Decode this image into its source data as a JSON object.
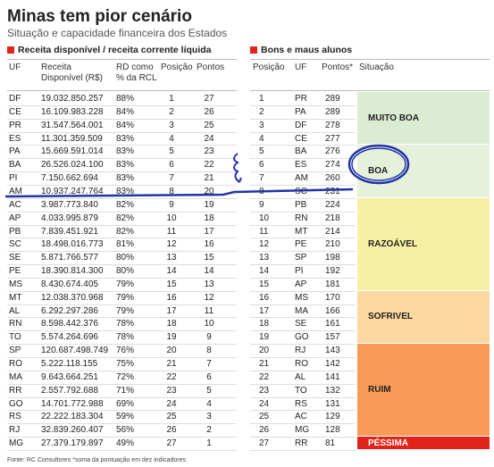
{
  "header": {
    "title": "Minas tem pior cenário",
    "subtitle": "Situação e capacidade financeira dos Estados"
  },
  "left_table": {
    "heading": "Receita disponível / receita corrente líquida",
    "columns": [
      "UF",
      "Receita Disponível (R$)",
      "RD como % da RCL",
      "Posição",
      "Pontos"
    ],
    "rows": [
      [
        "DF",
        "19.032.850.257",
        "88%",
        "1",
        "27"
      ],
      [
        "CE",
        "16.109.983.228",
        "84%",
        "2",
        "26"
      ],
      [
        "PR",
        "31.547.564.001",
        "84%",
        "3",
        "25"
      ],
      [
        "ES",
        "11.301.359.509",
        "83%",
        "4",
        "24"
      ],
      [
        "PA",
        "15.669.591.014",
        "83%",
        "5",
        "23"
      ],
      [
        "BA",
        "26.526.024.100",
        "83%",
        "6",
        "22"
      ],
      [
        "PI",
        "7.150.662.694",
        "83%",
        "7",
        "21"
      ],
      [
        "AM",
        "10.937.247.764",
        "83%",
        "8",
        "20"
      ],
      [
        "AC",
        "3.987.773.840",
        "82%",
        "9",
        "19"
      ],
      [
        "AP",
        "4.033.995.879",
        "82%",
        "10",
        "18"
      ],
      [
        "PB",
        "7.839.451.921",
        "82%",
        "11",
        "17"
      ],
      [
        "SC",
        "18.498.016.773",
        "81%",
        "12",
        "16"
      ],
      [
        "SE",
        "5.871.766.577",
        "80%",
        "13",
        "15"
      ],
      [
        "PE",
        "18.390.814.300",
        "80%",
        "14",
        "14"
      ],
      [
        "MS",
        "8.430.674.405",
        "79%",
        "15",
        "13"
      ],
      [
        "MT",
        "12.038.370.968",
        "79%",
        "16",
        "12"
      ],
      [
        "AL",
        "6.292.297.286",
        "79%",
        "17",
        "11"
      ],
      [
        "RN",
        "8.598.442.376",
        "78%",
        "18",
        "10"
      ],
      [
        "TO",
        "5.574.264.696",
        "78%",
        "19",
        "9"
      ],
      [
        "SP",
        "120.687.498.749",
        "76%",
        "20",
        "8"
      ],
      [
        "RO",
        "5.222.118.155",
        "75%",
        "21",
        "7"
      ],
      [
        "MA",
        "9.643.664.251",
        "72%",
        "22",
        "6"
      ],
      [
        "RR",
        "2.557.792.688",
        "71%",
        "23",
        "5"
      ],
      [
        "GO",
        "14.701.772.988",
        "69%",
        "24",
        "4"
      ],
      [
        "RS",
        "22.222.183.304",
        "59%",
        "25",
        "3"
      ],
      [
        "RJ",
        "32.839.260.407",
        "56%",
        "26",
        "2"
      ],
      [
        "MG",
        "27.379.179.897",
        "49%",
        "27",
        "1"
      ]
    ]
  },
  "right_table": {
    "heading": "Bons e maus alunos",
    "columns": [
      "Posição",
      "UF",
      "Pontos*",
      "Situação"
    ],
    "groups": [
      {
        "label": "MUITO BOA",
        "rows": [
          [
            "1",
            "PR",
            "289"
          ],
          [
            "2",
            "PA",
            "289"
          ],
          [
            "3",
            "DF",
            "278"
          ],
          [
            "4",
            "CE",
            "277"
          ]
        ]
      },
      {
        "label": "BOA",
        "rows": [
          [
            "5",
            "BA",
            "276"
          ],
          [
            "6",
            "ES",
            "274"
          ],
          [
            "7",
            "AM",
            "260"
          ],
          [
            "8",
            "SC",
            "231"
          ]
        ]
      },
      {
        "label": "RAZOÁVEL",
        "rows": [
          [
            "9",
            "PB",
            "224"
          ],
          [
            "10",
            "RN",
            "218"
          ],
          [
            "11",
            "MT",
            "214"
          ],
          [
            "12",
            "PE",
            "210"
          ],
          [
            "13",
            "SP",
            "198"
          ],
          [
            "14",
            "PI",
            "192"
          ],
          [
            "15",
            "AP",
            "181"
          ]
        ]
      },
      {
        "label": "SOFRIVEL",
        "rows": [
          [
            "16",
            "MS",
            "170"
          ],
          [
            "17",
            "MA",
            "166"
          ],
          [
            "18",
            "SE",
            "161"
          ],
          [
            "19",
            "GO",
            "157"
          ]
        ]
      },
      {
        "label": "RUIM",
        "rows": [
          [
            "20",
            "RJ",
            "143"
          ],
          [
            "21",
            "RO",
            "142"
          ],
          [
            "22",
            "AL",
            "141"
          ],
          [
            "23",
            "TO",
            "132"
          ],
          [
            "24",
            "RS",
            "131"
          ],
          [
            "25",
            "AC",
            "129"
          ],
          [
            "26",
            "MG",
            "128"
          ]
        ]
      },
      {
        "label": "PÉSSIMA",
        "rows": [
          [
            "27",
            "RR",
            "81"
          ]
        ]
      }
    ]
  },
  "footer": "Fonte: RC Consultores *soma da pontuação em dez indicadores"
}
